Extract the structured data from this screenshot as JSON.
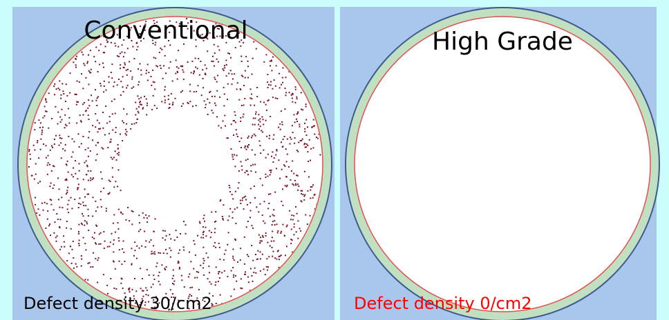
{
  "panels": [
    {
      "title": "Conventional",
      "caption": "Defect density 30/cm2"
    },
    {
      "title": "High Grade",
      "caption": "Defect density 0/cm2"
    }
  ]
}
